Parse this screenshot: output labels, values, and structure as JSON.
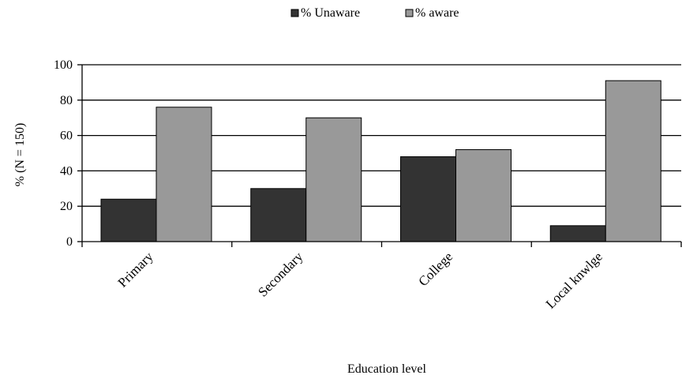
{
  "chart_data": {
    "type": "bar",
    "categories": [
      "Primary",
      "Secondary",
      "College",
      "Local knwlge"
    ],
    "series": [
      {
        "name": "% Unaware",
        "values": [
          24,
          30,
          48,
          9
        ],
        "color": "#333333"
      },
      {
        "name": "% aware",
        "values": [
          76,
          70,
          52,
          91
        ],
        "color": "#999999"
      }
    ],
    "xlabel": "Education level",
    "ylabel": "% (N = 150)",
    "ylim": [
      0,
      100
    ],
    "yticks": [
      0,
      20,
      40,
      60,
      80,
      100
    ],
    "grid": true,
    "legend_position": "top-center"
  }
}
